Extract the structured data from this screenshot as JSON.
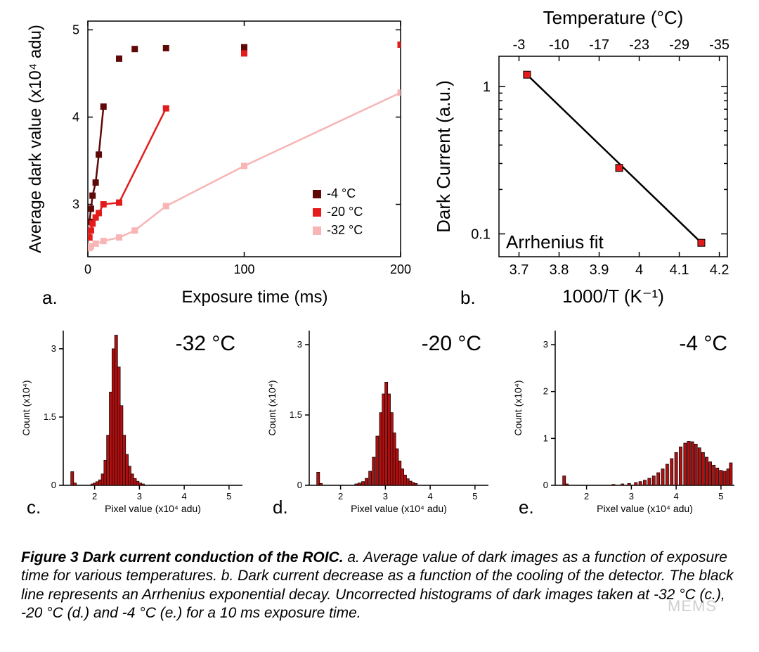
{
  "fig_width": 1080,
  "fig_height": 927,
  "colors": {
    "bg": "#ffffff",
    "axis": "#000000",
    "text": "#000000",
    "series_minus4": "#5e0808",
    "series_minus20": "#e31b1b",
    "series_minus32": "#f7b5b5",
    "fit_line": "#000000",
    "fit_point_fill": "#e31b1b",
    "fit_point_stroke": "#000000",
    "hist_fill": "#b01010",
    "hist_edge": "#000000"
  },
  "panel_a": {
    "letter": "a.",
    "x_title": "Exposure time (ms)",
    "y_title": "Average dark value (x10⁴ adu)",
    "xlim": [
      0,
      200
    ],
    "ylim": [
      2.4,
      5.1
    ],
    "x_ticks": [
      0,
      100,
      200
    ],
    "y_ticks": [
      3,
      4,
      5
    ],
    "series": [
      {
        "label": "-4 °C",
        "color_key": "series_minus4",
        "points": [
          [
            1,
            2.8
          ],
          [
            2,
            2.95
          ],
          [
            3,
            3.1
          ],
          [
            5,
            3.25
          ],
          [
            7,
            3.57
          ],
          [
            10,
            4.12
          ],
          [
            20,
            4.67
          ],
          [
            30,
            4.78
          ],
          [
            50,
            4.79
          ],
          [
            100,
            4.8
          ],
          [
            200,
            4.83
          ]
        ],
        "line_until_index": 5
      },
      {
        "label": "-20 °C",
        "color_key": "series_minus20",
        "points": [
          [
            1,
            2.62
          ],
          [
            2,
            2.7
          ],
          [
            3,
            2.78
          ],
          [
            5,
            2.85
          ],
          [
            7,
            2.9
          ],
          [
            10,
            3.0
          ],
          [
            20,
            3.02
          ],
          [
            50,
            4.1
          ],
          [
            100,
            4.73
          ],
          [
            200,
            4.83
          ]
        ],
        "line_until_index": 7
      },
      {
        "label": "-32 °C",
        "color_key": "series_minus32",
        "points": [
          [
            1,
            2.5
          ],
          [
            2,
            2.52
          ],
          [
            5,
            2.55
          ],
          [
            10,
            2.58
          ],
          [
            20,
            2.62
          ],
          [
            30,
            2.7
          ],
          [
            50,
            2.98
          ],
          [
            100,
            3.44
          ],
          [
            200,
            4.28
          ]
        ],
        "line_until_index": 8
      }
    ],
    "marker_size": 9,
    "line_width": 2.5
  },
  "panel_b": {
    "letter": "b.",
    "x_title": "1000/T (K⁻¹)",
    "top_title": "Temperature (°C)",
    "y_title": "Dark Current (a.u.)",
    "annotation": "Arrhenius fit",
    "xlim": [
      3.65,
      4.22
    ],
    "x_ticks": [
      3.7,
      3.8,
      3.9,
      4.0,
      4.1,
      4.2
    ],
    "top_ticks": [
      -3,
      -10,
      -17,
      -23,
      -29,
      -35
    ],
    "y_log": true,
    "ylim": [
      0.07,
      1.6
    ],
    "y_ticks": [
      0.1,
      1
    ],
    "points": [
      [
        3.72,
        1.2
      ],
      [
        3.95,
        0.28
      ],
      [
        4.155,
        0.087
      ]
    ],
    "marker_size": 10,
    "line_width": 2.5
  },
  "histograms": {
    "x_title": "Pixel value (x10⁴ adu)",
    "y_title": "Count (x10⁴)",
    "xlim": [
      1.3,
      5.3
    ],
    "x_ticks": [
      2,
      3,
      4,
      5
    ],
    "panels": [
      {
        "letter": "c.",
        "label": "-32 °C",
        "ylim": [
          0,
          3.4
        ],
        "y_ticks": [
          0.0,
          1.5,
          3.0
        ],
        "bins": [
          [
            1.5,
            0.3
          ],
          [
            1.56,
            0.05
          ],
          [
            1.95,
            0.03
          ],
          [
            2.0,
            0.05
          ],
          [
            2.06,
            0.08
          ],
          [
            2.12,
            0.12
          ],
          [
            2.18,
            0.25
          ],
          [
            2.24,
            0.55
          ],
          [
            2.3,
            1.1
          ],
          [
            2.36,
            2.05
          ],
          [
            2.42,
            3.0
          ],
          [
            2.48,
            3.3
          ],
          [
            2.54,
            2.6
          ],
          [
            2.6,
            1.75
          ],
          [
            2.66,
            1.1
          ],
          [
            2.72,
            0.68
          ],
          [
            2.78,
            0.42
          ],
          [
            2.84,
            0.25
          ],
          [
            2.9,
            0.15
          ],
          [
            2.96,
            0.09
          ],
          [
            3.02,
            0.05
          ],
          [
            3.08,
            0.03
          ]
        ]
      },
      {
        "letter": "d.",
        "label": "-20 °C",
        "ylim": [
          0,
          3.3
        ],
        "y_ticks": [
          0.0,
          1.5,
          3.0
        ],
        "bins": [
          [
            1.5,
            0.28
          ],
          [
            1.56,
            0.04
          ],
          [
            2.35,
            0.03
          ],
          [
            2.42,
            0.05
          ],
          [
            2.5,
            0.08
          ],
          [
            2.58,
            0.15
          ],
          [
            2.66,
            0.3
          ],
          [
            2.74,
            0.6
          ],
          [
            2.82,
            1.05
          ],
          [
            2.9,
            1.55
          ],
          [
            2.96,
            1.95
          ],
          [
            3.02,
            2.2
          ],
          [
            3.08,
            1.95
          ],
          [
            3.14,
            1.55
          ],
          [
            3.2,
            1.12
          ],
          [
            3.26,
            0.78
          ],
          [
            3.32,
            0.52
          ],
          [
            3.38,
            0.35
          ],
          [
            3.44,
            0.22
          ],
          [
            3.5,
            0.14
          ],
          [
            3.56,
            0.09
          ],
          [
            3.62,
            0.06
          ],
          [
            3.68,
            0.04
          ]
        ]
      },
      {
        "letter": "e.",
        "label": "-4 °C",
        "ylim": [
          0,
          3.3
        ],
        "y_ticks": [
          0,
          1,
          2,
          3
        ],
        "bins": [
          [
            1.5,
            0.2
          ],
          [
            1.56,
            0.03
          ],
          [
            2.6,
            0.02
          ],
          [
            2.8,
            0.03
          ],
          [
            2.95,
            0.04
          ],
          [
            3.1,
            0.06
          ],
          [
            3.2,
            0.08
          ],
          [
            3.3,
            0.11
          ],
          [
            3.4,
            0.15
          ],
          [
            3.5,
            0.2
          ],
          [
            3.6,
            0.27
          ],
          [
            3.7,
            0.35
          ],
          [
            3.8,
            0.45
          ],
          [
            3.9,
            0.57
          ],
          [
            4.0,
            0.7
          ],
          [
            4.1,
            0.82
          ],
          [
            4.2,
            0.9
          ],
          [
            4.28,
            0.94
          ],
          [
            4.36,
            0.93
          ],
          [
            4.44,
            0.88
          ],
          [
            4.52,
            0.8
          ],
          [
            4.6,
            0.7
          ],
          [
            4.68,
            0.6
          ],
          [
            4.76,
            0.5
          ],
          [
            4.84,
            0.43
          ],
          [
            4.92,
            0.37
          ],
          [
            5.0,
            0.32
          ],
          [
            5.08,
            0.3
          ],
          [
            5.16,
            0.35
          ],
          [
            5.22,
            0.48
          ]
        ]
      }
    ],
    "bar_width": 0.065
  },
  "caption": {
    "title": "Figure 3 Dark current conduction of the ROIC.",
    "body": " a. Average value of dark images as a function of exposure time for various temperatures. b. Dark current decrease as a function of the cooling of the detector. The black line represents an Arrhenius exponential decay. Uncorrected histograms of dark images taken at -32 °C (c.), -20 °C (d.) and -4 °C (e.) for a 10 ms exposure time."
  },
  "watermark": "MEMS"
}
